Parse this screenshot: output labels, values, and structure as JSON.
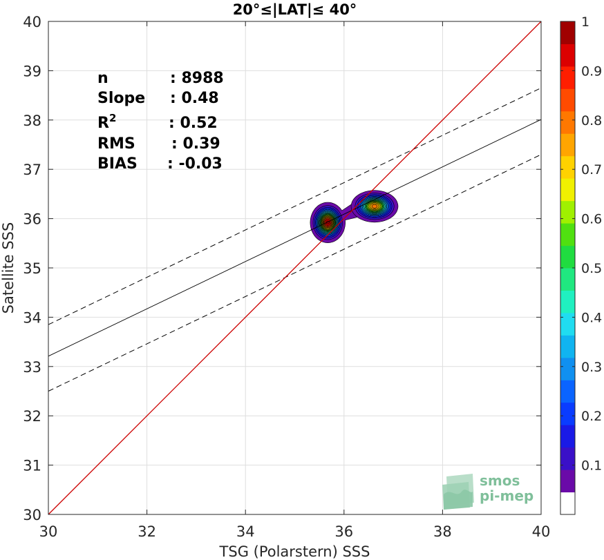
{
  "chart_data": {
    "type": "scatter",
    "title": "20°≤|LAT|≤ 40°",
    "xlabel": "TSG (Polarstern) SSS",
    "ylabel": "Satellite SSS",
    "xlim": [
      30,
      40
    ],
    "ylim": [
      30,
      40
    ],
    "xticks": [
      "30",
      "32",
      "34",
      "36",
      "38",
      "40"
    ],
    "yticks": [
      "30",
      "31",
      "32",
      "33",
      "34",
      "35",
      "36",
      "37",
      "38",
      "39",
      "40"
    ],
    "grid": true,
    "stats": [
      {
        "name": "n",
        "value": ": 8988",
        "sup": ""
      },
      {
        "name": "Slope",
        "value": ": 0.48",
        "sup": ""
      },
      {
        "name": "R",
        "value": ": 0.52",
        "sup": "2"
      },
      {
        "name": "RMS",
        "value": ": 0.39",
        "sup": ""
      },
      {
        "name": "BIAS",
        "value": ": -0.03",
        "sup": ""
      }
    ],
    "lines": {
      "identity": {
        "intercept": 0,
        "slope": 1,
        "color": "#cc0000"
      },
      "fit": {
        "intercept": 18.81,
        "slope": 0.48
      },
      "upper": {
        "intercept": 19.45,
        "slope": 0.48
      },
      "lower": {
        "intercept": 18.1,
        "slope": 0.48
      }
    },
    "density_clusters": [
      {
        "center": [
          35.67,
          35.92
        ],
        "spread": [
          0.45,
          0.52
        ],
        "peak": 1.0
      },
      {
        "center": [
          36.62,
          36.25
        ],
        "spread": [
          0.62,
          0.42
        ],
        "peak": 0.82
      }
    ],
    "colorbar": {
      "min": 0,
      "max": 1,
      "ticks": [
        "0.1",
        "0.2",
        "0.3",
        "0.4",
        "0.5",
        "0.6",
        "0.7",
        "0.8",
        "0.9",
        "1"
      ],
      "colors": [
        "#ffffff",
        "#6a0aa8",
        "#3a10c8",
        "#1a1ae6",
        "#0a3cff",
        "#0a64ff",
        "#1090f0",
        "#10b4f0",
        "#20dcf0",
        "#20f0c0",
        "#20e880",
        "#20dc40",
        "#50e010",
        "#a0f000",
        "#f0f000",
        "#ffd200",
        "#ffa500",
        "#ff7800",
        "#ff4b00",
        "#ff1e00",
        "#dc0000",
        "#a00000"
      ]
    },
    "logo": {
      "line1": "smos",
      "line2": "pi-mep"
    }
  }
}
